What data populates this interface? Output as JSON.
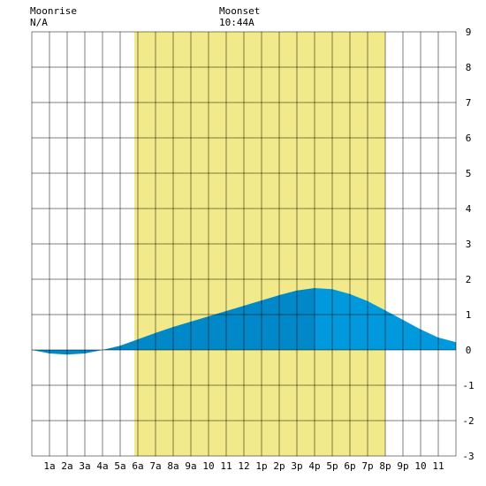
{
  "header": {
    "moonrise_label": "Moonrise",
    "moonrise_value": "N/A",
    "moonset_label": "Moonset",
    "moonset_value": "10:44A"
  },
  "colors": {
    "daylight": "#f2ea8a",
    "tide_day": "#0088c8",
    "tide_night": "#0099dd",
    "grid": "#000000",
    "background": "#ffffff"
  },
  "chart_data": {
    "type": "area",
    "title": "",
    "xlabel": "",
    "ylabel": "",
    "xlim": [
      0,
      24
    ],
    "ylim": [
      -3,
      9
    ],
    "x_tick_labels": [
      "1a",
      "2a",
      "3a",
      "4a",
      "5a",
      "6a",
      "7a",
      "8a",
      "9a",
      "10",
      "11",
      "12",
      "1p",
      "2p",
      "3p",
      "4p",
      "5p",
      "6p",
      "7p",
      "8p",
      "9p",
      "10",
      "11"
    ],
    "y_tick_labels": [
      "9",
      "8",
      "7",
      "6",
      "5",
      "4",
      "3",
      "2",
      "1",
      "0",
      "-1",
      "-2",
      "-3"
    ],
    "daylight_hours": [
      5.8,
      20.0
    ],
    "day_night_boundary_hour": 16.0,
    "series": [
      {
        "x": [
          0,
          1,
          2,
          3,
          4,
          5,
          6,
          7,
          8,
          9,
          10,
          11,
          12,
          13,
          14,
          15,
          16,
          17,
          18,
          19,
          20,
          21,
          22,
          23,
          24
        ],
        "y": [
          0.0,
          -0.1,
          -0.13,
          -0.1,
          0.0,
          0.12,
          0.3,
          0.48,
          0.65,
          0.8,
          0.95,
          1.1,
          1.25,
          1.4,
          1.55,
          1.68,
          1.75,
          1.72,
          1.58,
          1.38,
          1.12,
          0.85,
          0.58,
          0.35,
          0.22
        ]
      }
    ],
    "grid": true,
    "legend": "none"
  }
}
